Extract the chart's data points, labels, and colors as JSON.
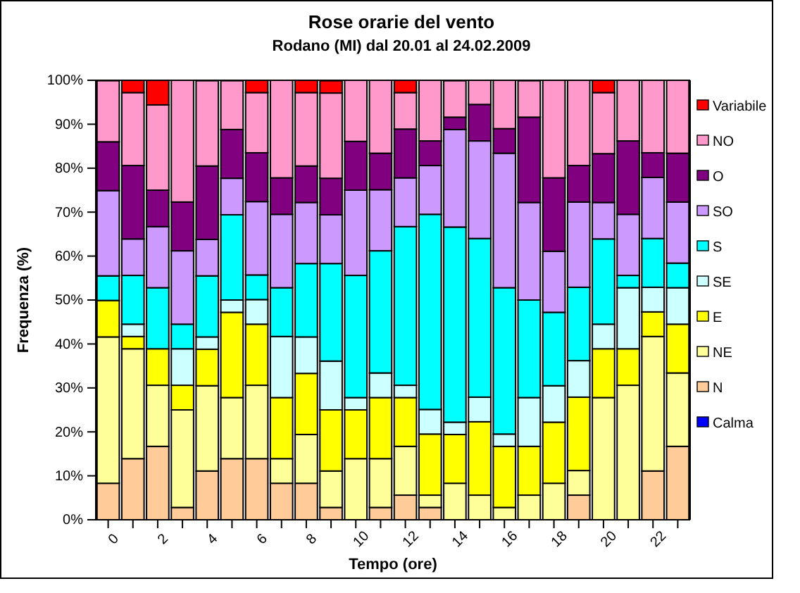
{
  "chart_data": {
    "type": "bar",
    "title": "Rose orarie del vento",
    "subtitle": "Rodano (MI) dal 20.01 al 24.02.2009",
    "xlabel": "Tempo (ore)",
    "ylabel": "Frequenza (%)",
    "categories": [
      "0",
      null,
      "2",
      null,
      "4",
      null,
      "6",
      null,
      "8",
      null,
      "10",
      null,
      "12",
      null,
      "14",
      null,
      "16",
      null,
      "18",
      null,
      "20",
      null,
      "22",
      null
    ],
    "stacked": true,
    "legend": "right",
    "ylim": [
      0,
      100
    ],
    "yticks": [
      {
        "value": 0,
        "label": "0%"
      },
      {
        "value": 10,
        "label": "10%"
      },
      {
        "value": 20,
        "label": "20%"
      },
      {
        "value": 30,
        "label": "30%"
      },
      {
        "value": 40,
        "label": "40%"
      },
      {
        "value": 50,
        "label": "50%"
      },
      {
        "value": 60,
        "label": "60%"
      },
      {
        "value": 70,
        "label": "70%"
      },
      {
        "value": 80,
        "label": "80%"
      },
      {
        "value": 90,
        "label": "90%"
      },
      {
        "value": 100,
        "label": "100%"
      }
    ],
    "series": [
      {
        "name": "Calma",
        "color": "#0000ff",
        "values": [
          0,
          0,
          0,
          0,
          0,
          0,
          0,
          0,
          0,
          0,
          0,
          0,
          0,
          0,
          0,
          0,
          0,
          0,
          0,
          0,
          0,
          0,
          0,
          0
        ]
      },
      {
        "name": "N",
        "color": "#ffcc99",
        "values": [
          8.3,
          13.9,
          16.7,
          2.8,
          11.1,
          13.9,
          13.9,
          8.3,
          8.3,
          2.8,
          0,
          2.8,
          5.6,
          2.8,
          0,
          0,
          0,
          0,
          0,
          5.6,
          0,
          0,
          11.1,
          16.7
        ]
      },
      {
        "name": "NE",
        "color": "#ffff99",
        "values": [
          33.3,
          25,
          13.9,
          22.2,
          19.4,
          13.9,
          16.7,
          5.6,
          11.1,
          8.3,
          13.9,
          11.1,
          11.1,
          2.8,
          8.3,
          5.6,
          2.8,
          5.6,
          8.3,
          5.6,
          27.8,
          30.6,
          30.6,
          16.7
        ]
      },
      {
        "name": "E",
        "color": "#ffff00",
        "values": [
          8.3,
          2.8,
          8.3,
          5.6,
          8.3,
          19.4,
          13.9,
          13.9,
          13.9,
          13.9,
          11.1,
          13.9,
          11.1,
          13.9,
          11.1,
          16.7,
          13.9,
          11.1,
          13.9,
          16.7,
          11.1,
          8.3,
          5.6,
          11.1
        ]
      },
      {
        "name": "SE",
        "color": "#ccffff",
        "values": [
          0,
          2.8,
          0,
          8.3,
          2.8,
          2.8,
          5.6,
          13.9,
          8.3,
          11.1,
          2.8,
          5.6,
          2.8,
          5.6,
          2.8,
          5.6,
          2.8,
          11.1,
          8.3,
          8.3,
          5.6,
          13.9,
          5.6,
          8.3
        ]
      },
      {
        "name": "S",
        "color": "#00ffff",
        "values": [
          5.6,
          11.1,
          13.9,
          5.6,
          13.9,
          19.4,
          5.6,
          11.1,
          16.7,
          22.2,
          27.8,
          27.8,
          36.1,
          44.4,
          44.4,
          36.1,
          33.3,
          22.2,
          16.7,
          16.7,
          19.4,
          2.8,
          11.1,
          5.6
        ]
      },
      {
        "name": "SO",
        "color": "#cc99ff",
        "values": [
          19.4,
          8.3,
          13.9,
          16.7,
          8.3,
          8.3,
          16.7,
          16.7,
          13.9,
          11.1,
          19.4,
          13.9,
          11.1,
          11.1,
          22.2,
          22.2,
          30.6,
          22.2,
          13.9,
          19.4,
          8.3,
          13.9,
          13.9,
          13.9
        ]
      },
      {
        "name": "O",
        "color": "#800080",
        "values": [
          11.1,
          16.7,
          8.3,
          11.1,
          16.7,
          11.1,
          11.1,
          8.3,
          8.3,
          8.3,
          11.1,
          8.3,
          11.1,
          5.6,
          2.8,
          8.3,
          5.6,
          19.4,
          16.7,
          8.3,
          11.1,
          16.7,
          5.6,
          11.1
        ]
      },
      {
        "name": "NO",
        "color": "#ff99cc",
        "values": [
          13.9,
          16.6,
          19.4,
          27.7,
          19.4,
          11.1,
          13.7,
          22.2,
          16.7,
          19.4,
          13.9,
          16.6,
          8.3,
          13.8,
          8.3,
          5.5,
          11.0,
          8.3,
          22.2,
          19.4,
          13.9,
          13.8,
          16.5,
          16.6
        ]
      },
      {
        "name": "Variabile",
        "color": "#ff0000",
        "values": [
          0,
          2.8,
          5.6,
          0,
          0,
          0,
          2.8,
          0,
          2.8,
          2.8,
          0,
          0,
          2.8,
          0,
          0,
          0,
          0,
          0,
          0,
          0,
          2.8,
          0,
          0,
          0
        ]
      }
    ]
  }
}
